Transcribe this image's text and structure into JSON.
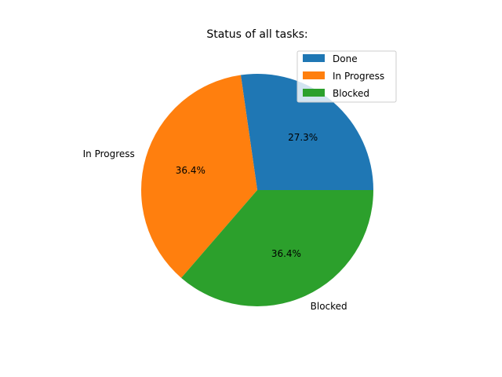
{
  "chart_data": {
    "type": "pie",
    "title": "Status of all tasks:",
    "categories": [
      "Done",
      "In Progress",
      "Blocked"
    ],
    "values": [
      27.3,
      36.4,
      36.4
    ],
    "percent_labels": [
      "27.3%",
      "36.4%",
      "36.4%"
    ],
    "slice_labels": [
      "",
      "In Progress",
      "Blocked"
    ],
    "colors": [
      "#1f77b4",
      "#ff7f0e",
      "#2ca02c"
    ],
    "start_angle_deg": 0,
    "direction": "counterclockwise",
    "legend": {
      "position": "top-right",
      "entries": [
        "Done",
        "In Progress",
        "Blocked"
      ]
    }
  }
}
